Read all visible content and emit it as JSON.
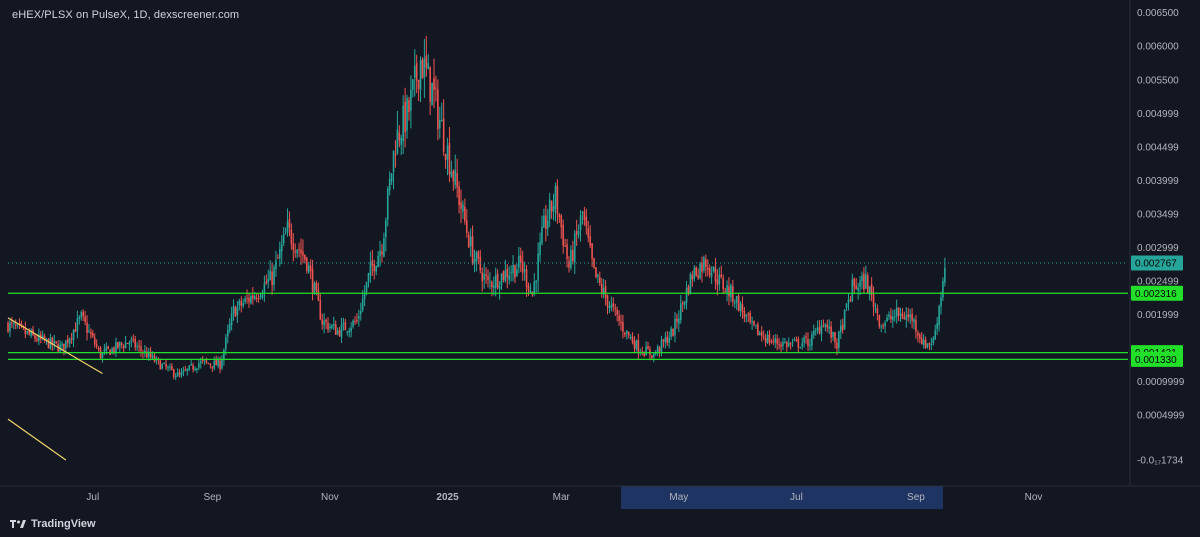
{
  "header": {
    "title": "eHEX/PLSX on PulseX, 1D, dexscreener.com"
  },
  "footer": {
    "brand": "TradingView"
  },
  "colors": {
    "background": "#131722",
    "up": "#26a69a",
    "down": "#ef5350",
    "level_line": "#22e02a",
    "price_badge": "#26a69a",
    "trendline": "#f0d36a",
    "highlight_band": "#1e3462"
  },
  "chart_data": {
    "type": "candlestick",
    "title": "eHEX/PLSX on PulseX, 1D, dexscreener.com",
    "ylim": [
      -0.00017,
      0.0066
    ],
    "y_ticks": [
      "0.006500",
      "0.006000",
      "0.005500",
      "0.004999",
      "0.004499",
      "0.003999",
      "0.003499",
      "0.002999",
      "0.002499",
      "0.001999",
      "0.0009999",
      "0.0004999",
      "-0.0₁₇1734"
    ],
    "y_tick_values": [
      0.0065,
      0.006,
      0.0055,
      0.004999,
      0.004499,
      0.003999,
      0.003499,
      0.002999,
      0.002499,
      0.001999,
      0.0009999,
      0.0004999,
      -0.00017
    ],
    "x_ticks": [
      "Jul",
      "Sep",
      "Nov",
      "2025",
      "Mar",
      "May",
      "Jul",
      "Sep",
      "Nov"
    ],
    "x_tick_dates": [
      "2024-07-01",
      "2024-09-01",
      "2024-11-01",
      "2025-01-01",
      "2025-03-01",
      "2025-05-01",
      "2025-07-01",
      "2025-09-01",
      "2025-11-01"
    ],
    "x_range": [
      "2024-05-18",
      "2025-12-20"
    ],
    "current_price": {
      "label": "0.002767",
      "value": 0.002767
    },
    "horizontal_levels": [
      {
        "label": "0.002316",
        "value": 0.002316
      },
      {
        "label": "0.001431",
        "value": 0.001431
      },
      {
        "label": "0.001330",
        "value": 0.00133
      }
    ],
    "highlighted_range": [
      "2025-04-01",
      "2025-09-15"
    ],
    "trendlines": [
      {
        "from": [
          "2024-05-18",
          0.00195
        ],
        "to": [
          "2024-07-06",
          0.00112
        ]
      },
      {
        "from": [
          "2024-05-18",
          0.00044
        ],
        "to": [
          "2024-06-17",
          -0.00017
        ]
      }
    ],
    "price_path": [
      [
        "2024-05-18",
        0.00185
      ],
      [
        "2024-06-01",
        0.00165
      ],
      [
        "2024-06-15",
        0.0015
      ],
      [
        "2024-06-25",
        0.00195
      ],
      [
        "2024-07-05",
        0.0014
      ],
      [
        "2024-07-20",
        0.0016
      ],
      [
        "2024-08-05",
        0.00125
      ],
      [
        "2024-08-15",
        0.00108
      ],
      [
        "2024-08-25",
        0.00128
      ],
      [
        "2024-09-05",
        0.00125
      ],
      [
        "2024-09-12",
        0.00205
      ],
      [
        "2024-09-25",
        0.00235
      ],
      [
        "2024-10-02",
        0.00255
      ],
      [
        "2024-10-10",
        0.00325
      ],
      [
        "2024-10-20",
        0.0028
      ],
      [
        "2024-10-28",
        0.0019
      ],
      [
        "2024-11-05",
        0.00175
      ],
      [
        "2024-11-15",
        0.0019
      ],
      [
        "2024-11-22",
        0.00265
      ],
      [
        "2024-11-28",
        0.00305
      ],
      [
        "2024-12-05",
        0.0046
      ],
      [
        "2024-12-12",
        0.00505
      ],
      [
        "2024-12-18",
        0.0058
      ],
      [
        "2024-12-24",
        0.00535
      ],
      [
        "2024-12-31",
        0.00455
      ],
      [
        "2025-01-06",
        0.00385
      ],
      [
        "2025-01-14",
        0.0029
      ],
      [
        "2025-01-22",
        0.00245
      ],
      [
        "2025-01-30",
        0.0026
      ],
      [
        "2025-02-08",
        0.00275
      ],
      [
        "2025-02-14",
        0.0023
      ],
      [
        "2025-02-20",
        0.0033
      ],
      [
        "2025-02-26",
        0.00375
      ],
      [
        "2025-03-05",
        0.0027
      ],
      [
        "2025-03-12",
        0.0035
      ],
      [
        "2025-03-18",
        0.0026
      ],
      [
        "2025-03-25",
        0.0022
      ],
      [
        "2025-04-02",
        0.0018
      ],
      [
        "2025-04-10",
        0.0015
      ],
      [
        "2025-04-18",
        0.0014
      ],
      [
        "2025-04-28",
        0.00175
      ],
      [
        "2025-05-08",
        0.0026
      ],
      [
        "2025-05-15",
        0.0028
      ],
      [
        "2025-05-22",
        0.0025
      ],
      [
        "2025-05-30",
        0.00225
      ],
      [
        "2025-06-08",
        0.0018
      ],
      [
        "2025-06-18",
        0.0016
      ],
      [
        "2025-06-28",
        0.00155
      ],
      [
        "2025-07-08",
        0.0016
      ],
      [
        "2025-07-15",
        0.0019
      ],
      [
        "2025-07-22",
        0.00155
      ],
      [
        "2025-07-30",
        0.0024
      ],
      [
        "2025-08-06",
        0.0025
      ],
      [
        "2025-08-14",
        0.00185
      ],
      [
        "2025-08-22",
        0.002
      ],
      [
        "2025-08-30",
        0.00195
      ],
      [
        "2025-09-05",
        0.00155
      ],
      [
        "2025-09-10",
        0.0016
      ],
      [
        "2025-09-14",
        0.0023
      ],
      [
        "2025-09-16",
        0.00276
      ]
    ]
  }
}
